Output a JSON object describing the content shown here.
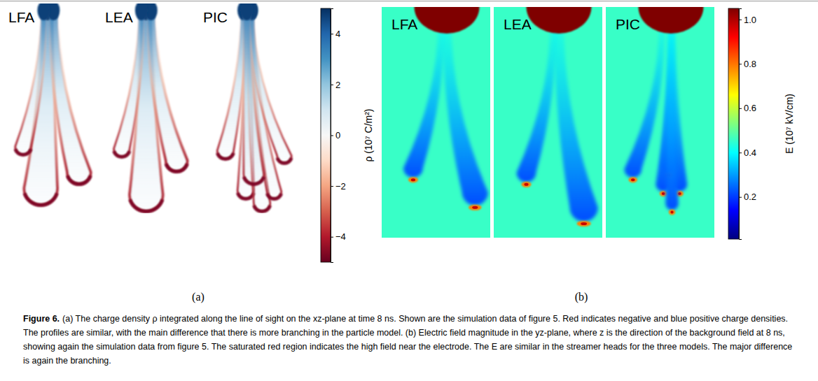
{
  "chart_data": [
    {
      "type": "heatmap",
      "subfigure": "(a)",
      "panel_titles": [
        "LFA",
        "LEA",
        "PIC"
      ],
      "colorbar": {
        "label": "ρ (10⁷ C/m²)",
        "range": [
          -5,
          5
        ],
        "ticks": [
          {
            "value": -4,
            "label": "−4"
          },
          {
            "value": -2,
            "label": "−2"
          },
          0,
          2,
          4
        ],
        "colors": [
          "#67001f",
          "#b2182b",
          "#d6604d",
          "#f4a582",
          "#fddbc7",
          "#f7f7f7",
          "#d1e5f0",
          "#92c5de",
          "#4393c3",
          "#2166ac",
          "#053061"
        ]
      }
    },
    {
      "type": "heatmap",
      "subfigure": "(b)",
      "panel_titles": [
        "LFA",
        "LEA",
        "PIC"
      ],
      "colorbar": {
        "label": "E (10⁷ kV/cm)",
        "range": [
          0.01,
          1.05
        ],
        "ticks": [
          0.2,
          0.4,
          0.6,
          0.8,
          {
            "value": 1,
            "label": "1.0"
          }
        ],
        "colors": [
          "#00007f",
          "#0000ff",
          "#007fff",
          "#00ffff",
          "#7fff7f",
          "#ffff00",
          "#ff7f00",
          "#ff0000",
          "#7f0000"
        ]
      }
    }
  ],
  "caption": {
    "label": "Figure 6.",
    "text": "(a) The charge density ρ integrated along the line of sight on the xz-plane at time 8 ns. Shown are the simulation data of figure 5. Red indicates negative and blue positive charge densities. The profiles are similar, with the main difference that there is more branching in the particle model. (b) Electric field magnitude in the yz-plane, where z is the direction of the background field at 8 ns, showing again the simulation data from figure 5. The saturated red region indicates the high field near the electrode. The E are similar in the streamer heads for the three models. The major difference is again the branching."
  }
}
